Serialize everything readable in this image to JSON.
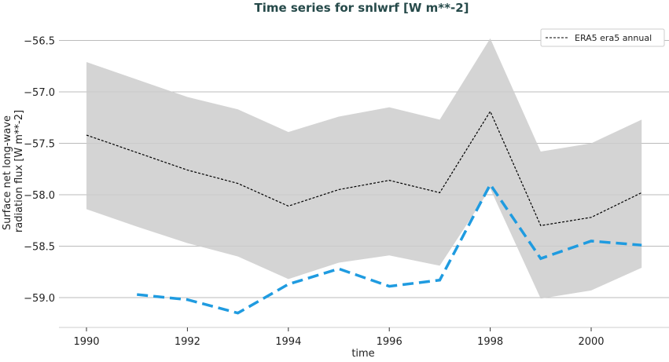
{
  "chart_data": {
    "type": "line",
    "title": "Time series for snlwrf [W m**-2]",
    "xlabel": "time",
    "ylabel": "Surface net long-wave radiation flux [W m**-2]",
    "ylabel_lines": [
      "Surface net long-wave",
      "radiation flux [W m**-2]"
    ],
    "xlim": [
      1989.5,
      2001.5
    ],
    "ylim": [
      -59.3,
      -56.4
    ],
    "xticks": [
      1990,
      1992,
      1994,
      1996,
      1998,
      2000
    ],
    "yticks": [
      -56.5,
      -57.0,
      -57.5,
      -58.0,
      -58.5,
      -59.0
    ],
    "ytick_labels": [
      "−56.5",
      "−57.0",
      "−57.5",
      "−58.0",
      "−58.5",
      "−59.0"
    ],
    "grid": "horizontal",
    "legend_placement": "top-right",
    "band": {
      "x": [
        1990,
        1991,
        1992,
        1993,
        1994,
        1995,
        1996,
        1997,
        1998,
        1999,
        2000,
        2001
      ],
      "upper": [
        -56.71,
        -56.88,
        -57.05,
        -57.17,
        -57.39,
        -57.24,
        -57.15,
        -57.27,
        -56.48,
        -57.58,
        -57.5,
        -57.27
      ],
      "lower": [
        -58.14,
        -58.31,
        -58.47,
        -58.6,
        -58.82,
        -58.66,
        -58.59,
        -58.69,
        -57.94,
        -59.01,
        -58.93,
        -58.71
      ],
      "color": "#cccccc"
    },
    "series": [
      {
        "name": "ERA5 era5 annual",
        "x": [
          1990,
          1991,
          1992,
          1993,
          1994,
          1995,
          1996,
          1997,
          1998,
          1999,
          2000,
          2001
        ],
        "values": [
          -57.42,
          -57.59,
          -57.76,
          -57.89,
          -58.11,
          -57.95,
          -57.86,
          -57.98,
          -57.19,
          -58.3,
          -58.22,
          -57.98
        ],
        "color": "#000000",
        "style": "dashed-thin"
      },
      {
        "x": [
          1991,
          1992,
          1993,
          1994,
          1995,
          1996,
          1997,
          1998,
          1999,
          2000,
          2001
        ],
        "values": [
          -58.97,
          -59.02,
          -59.15,
          -58.87,
          -58.72,
          -58.89,
          -58.83,
          -57.9,
          -58.62,
          -58.45,
          -58.49
        ],
        "color": "#1f9be0",
        "style": "dashed-thick"
      }
    ]
  },
  "colors": {
    "title": "#264a4a",
    "grid": "#bbbbbb"
  }
}
